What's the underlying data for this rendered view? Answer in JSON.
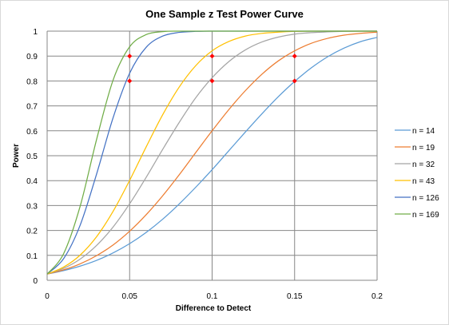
{
  "chart_data": {
    "type": "line",
    "title": "One Sample z Test Power Curve",
    "xlabel": "Difference to Detect",
    "ylabel": "Power",
    "xlim": [
      0,
      0.2
    ],
    "ylim": [
      0,
      1
    ],
    "x_ticks": [
      "0",
      "0.05",
      "0.1",
      "0.15",
      "0.2"
    ],
    "x_tick_values": [
      0,
      0.05,
      0.1,
      0.15,
      0.2
    ],
    "y_ticks": [
      "0",
      "0.1",
      "0.2",
      "0.3",
      "0.4",
      "0.5",
      "0.6",
      "0.7",
      "0.8",
      "0.9",
      "1"
    ],
    "y_tick_values": [
      0,
      0.1,
      0.2,
      0.3,
      0.4,
      0.5,
      0.6,
      0.7,
      0.8,
      0.9,
      1
    ],
    "grid": true,
    "legend_position": "right",
    "x": [
      0,
      0.01,
      0.02,
      0.03,
      0.04,
      0.05,
      0.06,
      0.07,
      0.08,
      0.09,
      0.1,
      0.11,
      0.12,
      0.13,
      0.14,
      0.15,
      0.16,
      0.17,
      0.18,
      0.19,
      0.2
    ],
    "series": [
      {
        "name": "n = 14",
        "color": "#5b9bd5",
        "values": [
          0.025,
          0.039,
          0.057,
          0.08,
          0.11,
          0.147,
          0.192,
          0.245,
          0.306,
          0.373,
          0.444,
          0.519,
          0.594,
          0.667,
          0.736,
          0.798,
          0.852,
          0.897,
          0.932,
          0.958,
          0.975
        ]
      },
      {
        "name": "n = 19",
        "color": "#ed7d31",
        "values": [
          0.025,
          0.042,
          0.066,
          0.099,
          0.142,
          0.197,
          0.263,
          0.339,
          0.423,
          0.512,
          0.6,
          0.684,
          0.76,
          0.826,
          0.88,
          0.921,
          0.951,
          0.971,
          0.984,
          0.991,
          0.996
        ]
      },
      {
        "name": "n = 32",
        "color": "#a5a5a5",
        "values": [
          0.025,
          0.048,
          0.085,
          0.14,
          0.214,
          0.307,
          0.413,
          0.525,
          0.633,
          0.732,
          0.813,
          0.877,
          0.924,
          0.956,
          0.976,
          0.988,
          0.994,
          0.997,
          0.999,
          1.0,
          1.0
        ]
      },
      {
        "name": "n = 43",
        "color": "#ffc000",
        "values": [
          0.025,
          0.053,
          0.101,
          0.175,
          0.277,
          0.401,
          0.535,
          0.664,
          0.775,
          0.861,
          0.921,
          0.958,
          0.98,
          0.991,
          0.996,
          0.999,
          1.0,
          1.0,
          1.0,
          1.0,
          1.0
        ]
      },
      {
        "name": "n = 126",
        "color": "#4472c4",
        "values": [
          0.025,
          0.087,
          0.221,
          0.427,
          0.653,
          0.831,
          0.935,
          0.98,
          0.995,
          0.999,
          1.0,
          1.0,
          1.0,
          1.0,
          1.0,
          1.0,
          1.0,
          1.0,
          1.0,
          1.0,
          1.0
        ]
      },
      {
        "name": "n = 169",
        "color": "#70ad47",
        "values": [
          0.025,
          0.107,
          0.297,
          0.566,
          0.804,
          0.937,
          0.986,
          0.998,
          1.0,
          1.0,
          1.0,
          1.0,
          1.0,
          1.0,
          1.0,
          1.0,
          1.0,
          1.0,
          1.0,
          1.0,
          1.0
        ]
      }
    ],
    "markers": {
      "color": "#ff0000",
      "points": [
        {
          "x": 0.05,
          "y": 0.9
        },
        {
          "x": 0.05,
          "y": 0.8
        },
        {
          "x": 0.1,
          "y": 0.9
        },
        {
          "x": 0.1,
          "y": 0.8
        },
        {
          "x": 0.15,
          "y": 0.9
        },
        {
          "x": 0.15,
          "y": 0.8
        }
      ]
    }
  }
}
